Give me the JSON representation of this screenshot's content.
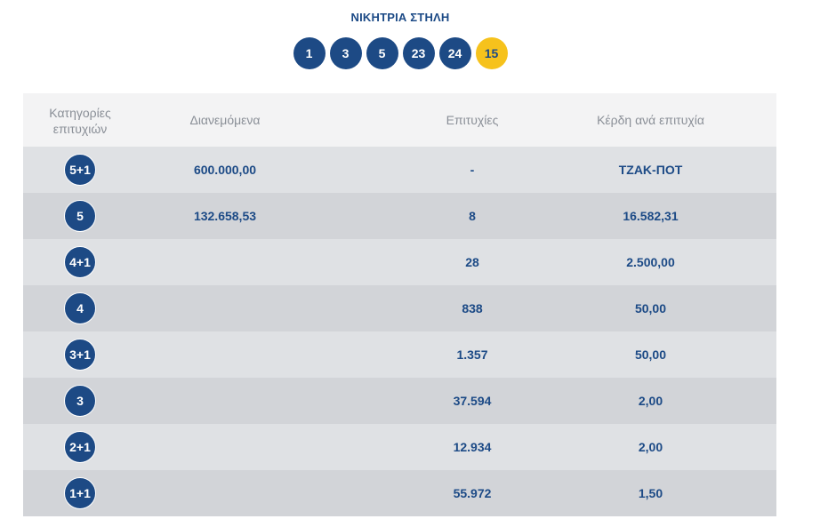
{
  "title": "ΝΙΚΗΤΡΙΑ ΣΤΗΛΗ",
  "winning_numbers": [
    "1",
    "3",
    "5",
    "23",
    "24"
  ],
  "joker": "15",
  "colors": {
    "primary": "#1d4a85",
    "joker": "#f6c21c",
    "row": "#dfe1e4",
    "row_alt": "#d2d4d8",
    "header_bg": "#f3f3f4"
  },
  "table": {
    "headers": {
      "category": "Κατηγορίες επιτυχιών",
      "distributed": "Διανεμόμενα",
      "winners": "Επιτυχίες",
      "prize": "Κέρδη ανά επιτυχία"
    },
    "rows": [
      {
        "category": "5+1",
        "distributed": "600.000,00",
        "winners": "-",
        "prize": "ΤΖΑΚ-ΠΟΤ"
      },
      {
        "category": "5",
        "distributed": "132.658,53",
        "winners": "8",
        "prize": "16.582,31"
      },
      {
        "category": "4+1",
        "distributed": "",
        "winners": "28",
        "prize": "2.500,00"
      },
      {
        "category": "4",
        "distributed": "",
        "winners": "838",
        "prize": "50,00"
      },
      {
        "category": "3+1",
        "distributed": "",
        "winners": "1.357",
        "prize": "50,00"
      },
      {
        "category": "3",
        "distributed": "",
        "winners": "37.594",
        "prize": "2,00"
      },
      {
        "category": "2+1",
        "distributed": "",
        "winners": "12.934",
        "prize": "2,00"
      },
      {
        "category": "1+1",
        "distributed": "",
        "winners": "55.972",
        "prize": "1,50"
      }
    ]
  }
}
